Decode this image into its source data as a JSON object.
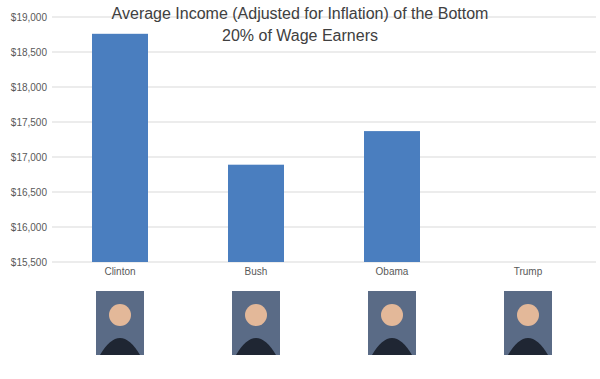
{
  "chart_data": {
    "type": "bar",
    "title": "Average Income (Adjusted for Inflation) of the Bottom 20% of Wage Earners",
    "categories": [
      "Clinton",
      "Bush",
      "Obama",
      "Trump"
    ],
    "values": [
      18760,
      16890,
      17370,
      null
    ],
    "color": "#4a7ebf",
    "ylim": [
      15500,
      19000
    ],
    "yticks": [
      {
        "value": 15500,
        "label": "$15,500"
      },
      {
        "value": 16000,
        "label": "$16,000"
      },
      {
        "value": 16500,
        "label": "$16,500"
      },
      {
        "value": 17000,
        "label": "$17,000"
      },
      {
        "value": 17500,
        "label": "$17,500"
      },
      {
        "value": 18000,
        "label": "$18,000"
      },
      {
        "value": 18500,
        "label": "$18,500"
      },
      {
        "value": 19000,
        "label": "$19,000"
      }
    ],
    "grid": true
  }
}
